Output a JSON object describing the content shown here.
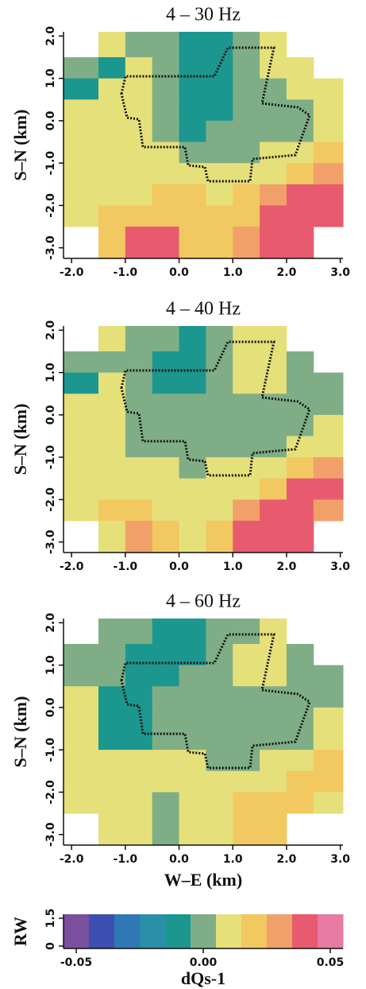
{
  "chart_data": [
    {
      "type": "heatmap",
      "title": "4 – 30 Hz",
      "ylabel": "S–N (km)",
      "x": [
        -1.75,
        -1.25,
        -0.75,
        -0.25,
        0.25,
        0.75,
        1.25,
        1.75,
        2.25,
        2.75
      ],
      "y": [
        1.75,
        1.25,
        0.75,
        0.25,
        -0.25,
        -0.75,
        -1.25,
        -1.75,
        -2.25,
        -2.75
      ],
      "values": [
        [
          null,
          0.005,
          0,
          -0.005,
          -0.01,
          -0.01,
          0,
          0.005,
          null,
          null
        ],
        [
          0,
          -0.01,
          0.005,
          -0.005,
          -0.01,
          -0.01,
          -0.005,
          0.005,
          0.005,
          null
        ],
        [
          -0.01,
          0.005,
          0.005,
          -0.005,
          -0.01,
          -0.01,
          -0.005,
          -0.005,
          0.005,
          0.005
        ],
        [
          0.005,
          0.005,
          0.005,
          -0.005,
          -0.01,
          -0.01,
          -0.005,
          -0.005,
          -0.005,
          0.005
        ],
        [
          0.01,
          0.01,
          0.005,
          -0.005,
          -0.01,
          -0.005,
          -0.005,
          -0.005,
          -0.005,
          0.005
        ],
        [
          0.01,
          0.01,
          0.01,
          0.005,
          -0.005,
          -0.005,
          -0.005,
          0.005,
          0.005,
          0.02
        ],
        [
          0.01,
          0.01,
          0.01,
          0.01,
          0.01,
          0.005,
          0.005,
          0.01,
          0.02,
          0.03
        ],
        [
          0.01,
          0.01,
          0.01,
          0.015,
          0.015,
          0.01,
          0.02,
          0.025,
          0.035,
          0.04
        ],
        [
          0.01,
          0.015,
          0.02,
          0.02,
          0.02,
          0.015,
          0.02,
          0.035,
          0.04,
          0.04
        ],
        [
          null,
          0.02,
          0.035,
          0.035,
          0.02,
          0.02,
          0.03,
          0.04,
          0.04,
          null
        ]
      ],
      "xlim": [
        -2.15,
        3.05
      ],
      "ylim": [
        -3.25,
        2.1
      ],
      "xticks": [
        {
          "value": -2,
          "label": "-2.0"
        },
        {
          "value": -1,
          "label": "-1.0"
        },
        {
          "value": 0,
          "label": "0.0"
        },
        {
          "value": 1,
          "label": "1.0"
        },
        {
          "value": 2,
          "label": "2.0"
        },
        {
          "value": 3,
          "label": "3.0"
        }
      ],
      "yticks": [
        {
          "value": 2,
          "label": "2.0"
        },
        {
          "value": 1,
          "label": "1.0"
        },
        {
          "value": 0,
          "label": "0.0"
        },
        {
          "value": -1,
          "label": "-1.0"
        },
        {
          "value": -2,
          "label": "-2.0"
        },
        {
          "value": -3,
          "label": "-3.0"
        }
      ]
    },
    {
      "type": "heatmap",
      "title": "4 – 40 Hz",
      "ylabel": "S–N (km)",
      "x": [
        -1.75,
        -1.25,
        -0.75,
        -0.25,
        0.25,
        0.75,
        1.25,
        1.75,
        2.25,
        2.75
      ],
      "y": [
        1.75,
        1.25,
        0.75,
        0.25,
        -0.25,
        -0.75,
        -1.25,
        -1.75,
        -2.25,
        -2.75
      ],
      "values": [
        [
          null,
          0.005,
          0,
          -0.005,
          -0.01,
          -0.005,
          0.005,
          0.005,
          null,
          null
        ],
        [
          -0.005,
          -0.005,
          0,
          -0.01,
          -0.01,
          -0.005,
          0.005,
          0.01,
          0,
          null
        ],
        [
          -0.01,
          0.005,
          -0.005,
          -0.01,
          -0.01,
          -0.005,
          0.01,
          0.01,
          -0.005,
          0
        ],
        [
          0.005,
          0.005,
          -0.005,
          -0.005,
          -0.005,
          -0.005,
          -0.005,
          -0.005,
          -0.005,
          0
        ],
        [
          0.005,
          0.005,
          -0.005,
          -0.005,
          -0.005,
          -0.005,
          -0.005,
          -0.005,
          -0.005,
          0.005
        ],
        [
          0.01,
          0.005,
          -0.005,
          -0.005,
          -0.005,
          -0.005,
          -0.005,
          -0.005,
          0.005,
          0.01
        ],
        [
          0.01,
          0.01,
          0.005,
          0.005,
          -0.005,
          0.005,
          0.005,
          0.01,
          0.02,
          0.03
        ],
        [
          0.01,
          0.01,
          0.01,
          0.01,
          0.01,
          0.01,
          0.01,
          0.02,
          0.035,
          0.035
        ],
        [
          0.005,
          0.02,
          0.015,
          0.01,
          0.01,
          0.01,
          0.03,
          0.04,
          0.04,
          0.03
        ],
        [
          null,
          0.01,
          0.03,
          0.02,
          0.01,
          0.02,
          0.04,
          0.04,
          0.035,
          null
        ]
      ],
      "xlim": [
        -2.15,
        3.05
      ],
      "ylim": [
        -3.25,
        2.1
      ],
      "xticks": [
        {
          "value": -2,
          "label": "-2.0"
        },
        {
          "value": -1,
          "label": "-1.0"
        },
        {
          "value": 0,
          "label": "0.0"
        },
        {
          "value": 1,
          "label": "1.0"
        },
        {
          "value": 2,
          "label": "2.0"
        },
        {
          "value": 3,
          "label": "3.0"
        }
      ],
      "yticks": [
        {
          "value": 2,
          "label": "2.0"
        },
        {
          "value": 1,
          "label": "1.0"
        },
        {
          "value": 0,
          "label": "0.0"
        },
        {
          "value": -1,
          "label": "-1.0"
        },
        {
          "value": -2,
          "label": "-2.0"
        },
        {
          "value": -3,
          "label": "-3.0"
        }
      ]
    },
    {
      "type": "heatmap",
      "title": "4 – 60 Hz",
      "ylabel": "S–N (km)",
      "xlabel": "W–E (km)",
      "x": [
        -1.75,
        -1.25,
        -0.75,
        -0.25,
        0.25,
        0.75,
        1.25,
        1.75,
        2.25,
        2.75
      ],
      "y": [
        1.75,
        1.25,
        0.75,
        0.25,
        -0.25,
        -0.75,
        -1.25,
        -1.75,
        -2.25,
        -2.75
      ],
      "values": [
        [
          null,
          -0.005,
          -0.005,
          -0.01,
          -0.01,
          -0.005,
          0,
          0.005,
          null,
          null
        ],
        [
          -0.005,
          -0.005,
          -0.01,
          -0.01,
          -0.01,
          -0.005,
          0.005,
          0.005,
          0,
          null
        ],
        [
          -0.005,
          -0.005,
          -0.01,
          -0.01,
          -0.005,
          -0.005,
          0.005,
          0.005,
          -0.005,
          0
        ],
        [
          0.005,
          -0.01,
          -0.01,
          -0.005,
          -0.005,
          -0.005,
          -0.005,
          -0.005,
          -0.005,
          0
        ],
        [
          0.005,
          -0.01,
          -0.01,
          -0.005,
          -0.005,
          -0.005,
          -0.005,
          -0.005,
          -0.005,
          0.005
        ],
        [
          0.005,
          -0.01,
          -0.01,
          -0.005,
          -0.005,
          -0.005,
          -0.005,
          -0.005,
          0,
          0.01
        ],
        [
          0.005,
          0.005,
          0.005,
          0.005,
          0.005,
          -0.005,
          -0.005,
          0.005,
          0.01,
          0.02
        ],
        [
          0.01,
          0.01,
          0.01,
          0.01,
          0.01,
          0.005,
          0.005,
          0.01,
          0.02,
          0.02
        ],
        [
          0.005,
          0.01,
          0.01,
          0,
          0.005,
          0.01,
          0.02,
          0.02,
          0.02,
          0.01
        ],
        [
          null,
          0.005,
          0.005,
          -0.005,
          0.005,
          0.01,
          0.02,
          0.02,
          null,
          null
        ]
      ],
      "xlim": [
        -2.15,
        3.05
      ],
      "ylim": [
        -3.25,
        2.1
      ],
      "xticks": [
        {
          "value": -2,
          "label": "-2.0"
        },
        {
          "value": -1,
          "label": "-1.0"
        },
        {
          "value": 0,
          "label": "0.0"
        },
        {
          "value": 1,
          "label": "1.0"
        },
        {
          "value": 2,
          "label": "2.0"
        },
        {
          "value": 3,
          "label": "3.0"
        }
      ],
      "yticks": [
        {
          "value": 2,
          "label": "2.0"
        },
        {
          "value": 1,
          "label": "1.0"
        },
        {
          "value": 0,
          "label": "0.0"
        },
        {
          "value": -1,
          "label": "-1.0"
        },
        {
          "value": -2,
          "label": "-2.0"
        },
        {
          "value": -3,
          "label": "-3.0"
        }
      ]
    },
    {
      "type": "colorbar",
      "xlabel": "dQs-1",
      "ylabel": "RW",
      "bins": [
        -0.055,
        -0.045,
        -0.035,
        -0.025,
        -0.015,
        -0.005,
        0.005,
        0.015,
        0.025,
        0.035,
        0.045,
        0.055
      ],
      "colors": [
        "#7a4f9e",
        "#3d4fb0",
        "#2f78b4",
        "#2a8fa8",
        "#1c978f",
        "#7fae86",
        "#e6e07a",
        "#f2c861",
        "#f2a06a",
        "#e85a6e",
        "#e77aa3"
      ],
      "xlim": [
        -0.055,
        0.055
      ],
      "ylim": [
        0,
        1.5
      ],
      "xticks": [
        -0.05,
        {
          "value": 0,
          "label": "0.00"
        },
        0.05
      ],
      "yticks": [
        0,
        1.5
      ]
    }
  ]
}
